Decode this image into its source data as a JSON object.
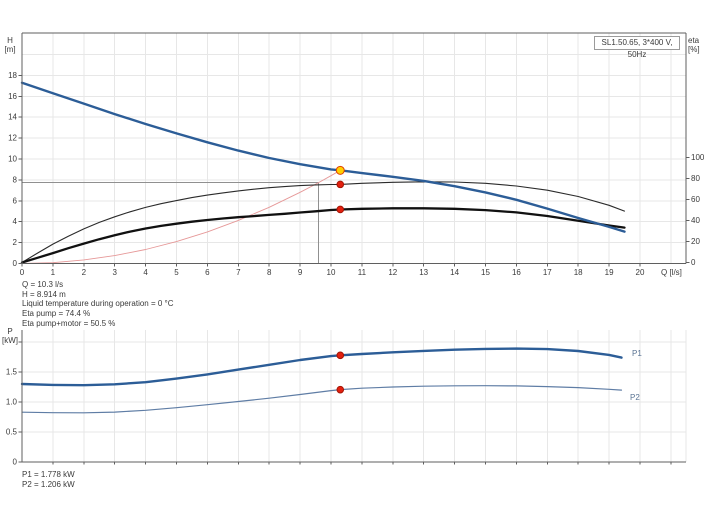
{
  "top_chart": {
    "model_label": "SL1.50.65, 3*400 V, 50Hz",
    "x_axis": {
      "label": "Q [l/s]",
      "ticks": [
        "0",
        "1",
        "2",
        "3",
        "4",
        "5",
        "6",
        "7",
        "8",
        "9",
        "10",
        "11",
        "12",
        "13",
        "14",
        "15",
        "16",
        "17",
        "18",
        "19",
        "20"
      ]
    },
    "h_axis": {
      "title": [
        "H",
        "[m]"
      ],
      "ticks": [
        "0",
        "2",
        "4",
        "6",
        "8",
        "10",
        "12",
        "14",
        "16",
        "18"
      ]
    },
    "eta_axis": {
      "title": [
        "eta",
        "[%]"
      ],
      "ticks": [
        "0",
        "20",
        "40",
        "60",
        "80",
        "100"
      ]
    },
    "info_lines": [
      "Q = 10.3 l/s",
      "H = 8.914 m",
      "Liquid temperature during operation = 0 °C",
      "Eta pump = 74.4 %",
      "Eta pump+motor = 50.5 %"
    ]
  },
  "bottom_chart": {
    "p_axis": {
      "title": [
        "P",
        "[kW]"
      ],
      "ticks": [
        {
          "v": 0,
          "label": "0"
        },
        {
          "v": 0.5,
          "label": "0.5"
        },
        {
          "v": 1,
          "label": "1.0"
        },
        {
          "v": 1.5,
          "label": "1.5"
        },
        {
          "v": 2,
          "label": ""
        }
      ]
    },
    "series_labels": [
      "P1",
      "P2"
    ],
    "power_lines": [
      "P1 = 1.778 kW",
      "P2 = 1.206 kW"
    ]
  },
  "colors": {
    "grid": "#e7e7e7",
    "axis": "#5f5f5f",
    "guide": "#909090",
    "tick_text": "#3a3a3a",
    "curve_blue": "#2c5d97",
    "curve_blue_light": "#5f7da5",
    "curve_black_thin": "#2b2b2b",
    "curve_black_thick": "#111111",
    "system_red": "#e69898",
    "marker_red": "#e3200f",
    "marker_red_edge": "#a51505",
    "marker_yellow": "#ffd000",
    "marker_yellow_edge": "#e04000"
  },
  "chart_data": [
    {
      "type": "line",
      "title": "SL1.50.65, 3*400 V, 50Hz",
      "xlabel": "Q [l/s]",
      "xlim": [
        0,
        21.5
      ],
      "x_ticks": [
        0,
        1,
        2,
        3,
        4,
        5,
        6,
        7,
        8,
        9,
        10,
        11,
        12,
        13,
        14,
        15,
        16,
        17,
        18,
        19,
        20
      ],
      "axes": {
        "left": {
          "label": "H [m]",
          "ticks": [
            0,
            2,
            4,
            6,
            8,
            10,
            12,
            14,
            16,
            18
          ],
          "lim": [
            0,
            22.1
          ]
        },
        "right": {
          "label": "eta [%]",
          "ticks": [
            0,
            20,
            40,
            60,
            80,
            100
          ],
          "lim": [
            0,
            218
          ]
        }
      },
      "grid": true,
      "series": [
        {
          "name": "QH curve",
          "yaxis": "left",
          "color": "#2c5d97",
          "width": 2.4,
          "points": [
            [
              0,
              17.3
            ],
            [
              1,
              16.3
            ],
            [
              2,
              15.3
            ],
            [
              3,
              14.3
            ],
            [
              4,
              13.35
            ],
            [
              5,
              12.45
            ],
            [
              6,
              11.6
            ],
            [
              7,
              10.8
            ],
            [
              8,
              10.1
            ],
            [
              9,
              9.5
            ],
            [
              10,
              9.0
            ],
            [
              10.3,
              8.914
            ],
            [
              11,
              8.65
            ],
            [
              12,
              8.3
            ],
            [
              13,
              7.9
            ],
            [
              14,
              7.4
            ],
            [
              15,
              6.8
            ],
            [
              16,
              6.1
            ],
            [
              17,
              5.25
            ],
            [
              18,
              4.35
            ],
            [
              19,
              3.5
            ],
            [
              19.5,
              3.05
            ]
          ]
        },
        {
          "name": "Eta pump",
          "yaxis": "right",
          "color": "#2b2b2b",
          "width": 1.1,
          "points": [
            [
              0,
              0
            ],
            [
              0.5,
              9
            ],
            [
              1,
              17.5
            ],
            [
              1.5,
              25
            ],
            [
              2,
              32
            ],
            [
              2.5,
              38.2
            ],
            [
              3,
              43.5
            ],
            [
              3.5,
              48.3
            ],
            [
              4,
              52.5
            ],
            [
              4.5,
              56
            ],
            [
              5,
              59
            ],
            [
              5.5,
              61.8
            ],
            [
              6,
              64.2
            ],
            [
              6.5,
              66.3
            ],
            [
              7,
              68.2
            ],
            [
              7.5,
              69.8
            ],
            [
              8,
              71.2
            ],
            [
              8.5,
              72.3
            ],
            [
              9,
              73.2
            ],
            [
              9.5,
              73.9
            ],
            [
              10,
              74.3
            ],
            [
              10.3,
              74.4
            ],
            [
              11,
              75.4
            ],
            [
              12,
              76.4
            ],
            [
              13,
              76.9
            ],
            [
              14,
              76.7
            ],
            [
              15,
              75.4
            ],
            [
              16,
              72.9
            ],
            [
              17,
              68.9
            ],
            [
              18,
              62.9
            ],
            [
              19,
              54.5
            ],
            [
              19.5,
              49
            ]
          ]
        },
        {
          "name": "Eta pump+motor",
          "yaxis": "right",
          "color": "#111111",
          "width": 2.3,
          "points": [
            [
              0,
              0
            ],
            [
              0.5,
              4.5
            ],
            [
              1,
              9
            ],
            [
              1.5,
              13.6
            ],
            [
              2,
              18
            ],
            [
              2.5,
              22.2
            ],
            [
              3,
              26
            ],
            [
              3.5,
              29.4
            ],
            [
              4,
              32.4
            ],
            [
              4.5,
              34.9
            ],
            [
              5,
              37
            ],
            [
              5.5,
              38.9
            ],
            [
              6,
              40.5
            ],
            [
              6.5,
              41.9
            ],
            [
              7,
              43.1
            ],
            [
              7.5,
              44.2
            ],
            [
              8,
              45.3
            ],
            [
              8.5,
              46.4
            ],
            [
              9,
              47.6
            ],
            [
              9.5,
              48.8
            ],
            [
              10,
              50
            ],
            [
              10.3,
              50.5
            ],
            [
              11,
              51.1
            ],
            [
              12,
              51.6
            ],
            [
              13,
              51.6
            ],
            [
              14,
              51.1
            ],
            [
              15,
              49.9
            ],
            [
              16,
              47.7
            ],
            [
              17,
              44.3
            ],
            [
              18,
              39.8
            ],
            [
              19,
              35.2
            ],
            [
              19.5,
              33.2
            ]
          ]
        },
        {
          "name": "System curve",
          "yaxis": "left",
          "color": "#e69898",
          "width": 0.9,
          "points": [
            [
              0,
              0
            ],
            [
              1,
              0.08
            ],
            [
              2,
              0.34
            ],
            [
              3,
              0.76
            ],
            [
              4,
              1.34
            ],
            [
              5,
              2.1
            ],
            [
              6,
              3.02
            ],
            [
              7,
              4.12
            ],
            [
              8,
              5.38
            ],
            [
              9,
              6.81
            ],
            [
              9.6,
              7.74
            ],
            [
              10,
              8.4
            ],
            [
              10.3,
              8.914
            ]
          ]
        }
      ],
      "markers": [
        {
          "name": "duty-point",
          "yaxis": "left",
          "x": 10.3,
          "y": 8.914,
          "fill": "#ffd000",
          "stroke": "#e04000",
          "r": 4
        },
        {
          "name": "eta-pump-point",
          "yaxis": "right",
          "x": 10.3,
          "y": 74.4,
          "fill": "#e3200f",
          "stroke": "#a51505",
          "r": 3.3
        },
        {
          "name": "eta-pump-motor-point",
          "yaxis": "right",
          "x": 10.3,
          "y": 50.5,
          "fill": "#e3200f",
          "stroke": "#a51505",
          "r": 3.3
        }
      ],
      "guide_lines": {
        "x": 9.6,
        "y": 7.74
      }
    },
    {
      "type": "line",
      "title": "",
      "xlabel": "",
      "xlim": [
        0,
        21.5
      ],
      "axes": {
        "left": {
          "label": "P [kW]",
          "ticks": [
            0,
            0.5,
            1.0,
            1.5
          ],
          "grid": [
            0.5,
            1.0,
            1.5,
            2.0
          ],
          "lim": [
            0,
            2.2
          ]
        }
      },
      "grid": true,
      "series": [
        {
          "name": "P1",
          "yaxis": "left",
          "color": "#2c5d97",
          "width": 2.4,
          "points": [
            [
              0,
              1.3
            ],
            [
              1,
              1.285
            ],
            [
              2,
              1.28
            ],
            [
              3,
              1.295
            ],
            [
              4,
              1.33
            ],
            [
              5,
              1.39
            ],
            [
              6,
              1.46
            ],
            [
              7,
              1.54
            ],
            [
              8,
              1.62
            ],
            [
              9,
              1.7
            ],
            [
              10,
              1.765
            ],
            [
              10.3,
              1.778
            ],
            [
              11,
              1.8
            ],
            [
              12,
              1.828
            ],
            [
              13,
              1.852
            ],
            [
              14,
              1.872
            ],
            [
              15,
              1.885
            ],
            [
              16,
              1.89
            ],
            [
              17,
              1.882
            ],
            [
              18,
              1.85
            ],
            [
              19,
              1.785
            ],
            [
              19.4,
              1.74
            ]
          ]
        },
        {
          "name": "P2",
          "yaxis": "left",
          "color": "#5f7da5",
          "width": 1.2,
          "points": [
            [
              0,
              0.83
            ],
            [
              1,
              0.822
            ],
            [
              2,
              0.82
            ],
            [
              3,
              0.832
            ],
            [
              4,
              0.862
            ],
            [
              5,
              0.905
            ],
            [
              6,
              0.955
            ],
            [
              7,
              1.008
            ],
            [
              8,
              1.063
            ],
            [
              9,
              1.125
            ],
            [
              10,
              1.19
            ],
            [
              10.3,
              1.206
            ],
            [
              11,
              1.23
            ],
            [
              12,
              1.25
            ],
            [
              13,
              1.263
            ],
            [
              14,
              1.27
            ],
            [
              15,
              1.272
            ],
            [
              16,
              1.268
            ],
            [
              17,
              1.257
            ],
            [
              18,
              1.24
            ],
            [
              19,
              1.212
            ],
            [
              19.4,
              1.198
            ]
          ]
        }
      ],
      "markers": [
        {
          "name": "p1-point",
          "x": 10.3,
          "y": 1.778,
          "fill": "#e3200f",
          "stroke": "#a51505",
          "r": 3.3
        },
        {
          "name": "p2-point",
          "x": 10.3,
          "y": 1.206,
          "fill": "#e3200f",
          "stroke": "#a51505",
          "r": 3.3
        }
      ]
    }
  ]
}
